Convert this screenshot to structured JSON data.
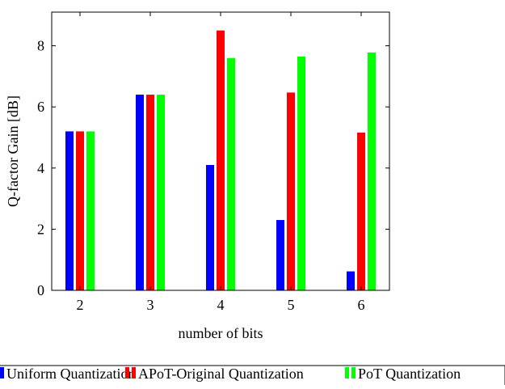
{
  "chart_data": {
    "type": "bar",
    "title": "",
    "xlabel": "number of bits",
    "ylabel": "Q-factor Gain [dB]",
    "categories": [
      "2",
      "3",
      "4",
      "5",
      "6"
    ],
    "yticks": [
      "0",
      "2",
      "4",
      "6",
      "8"
    ],
    "ylim": [
      0,
      9.1
    ],
    "grid": false,
    "legend_position": "bottom",
    "series": [
      {
        "name": "Uniform Quantization",
        "color": "#0000ff",
        "values": [
          5.2,
          6.4,
          4.1,
          2.3,
          0.62
        ]
      },
      {
        "name": "APoT-Original Quantization",
        "color": "#ff0000",
        "values": [
          5.2,
          6.4,
          8.5,
          6.47,
          5.16
        ]
      },
      {
        "name": "PoT Quantization",
        "color": "#00ff00",
        "values": [
          5.2,
          6.4,
          7.6,
          7.65,
          7.78
        ]
      }
    ]
  }
}
